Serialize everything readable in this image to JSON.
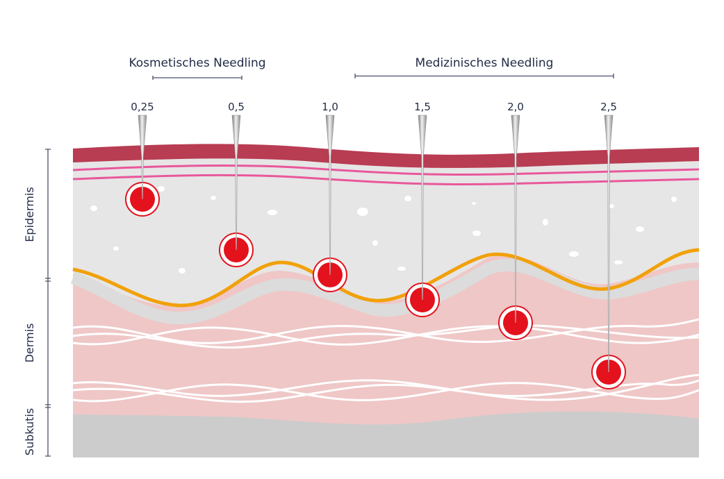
{
  "groups": [
    {
      "label": "Kosmetisches Needling"
    },
    {
      "label": "Medizinisches Needling"
    }
  ],
  "needles": [
    {
      "depth_label": "0,25",
      "depth_mm": 0.25
    },
    {
      "depth_label": "0,5",
      "depth_mm": 0.5
    },
    {
      "depth_label": "1,0",
      "depth_mm": 1.0
    },
    {
      "depth_label": "1,5",
      "depth_mm": 1.5
    },
    {
      "depth_label": "2,0",
      "depth_mm": 2.0
    },
    {
      "depth_label": "2,5",
      "depth_mm": 2.5
    }
  ],
  "layers": [
    {
      "label": "Epidermis"
    },
    {
      "label": "Dermis"
    },
    {
      "label": "Subkutis"
    }
  ],
  "colors": {
    "stratum_corneum": "#b83c52",
    "pink_lines": "#e9579b",
    "epidermis": "#e6e6e6",
    "basement_membrane": "#f1a10a",
    "dermis": "#efc7c7",
    "subcutis": "#cccccc",
    "puncture": "#e3121d",
    "needle": "#a9a9a9",
    "text": "#1f2a44"
  }
}
